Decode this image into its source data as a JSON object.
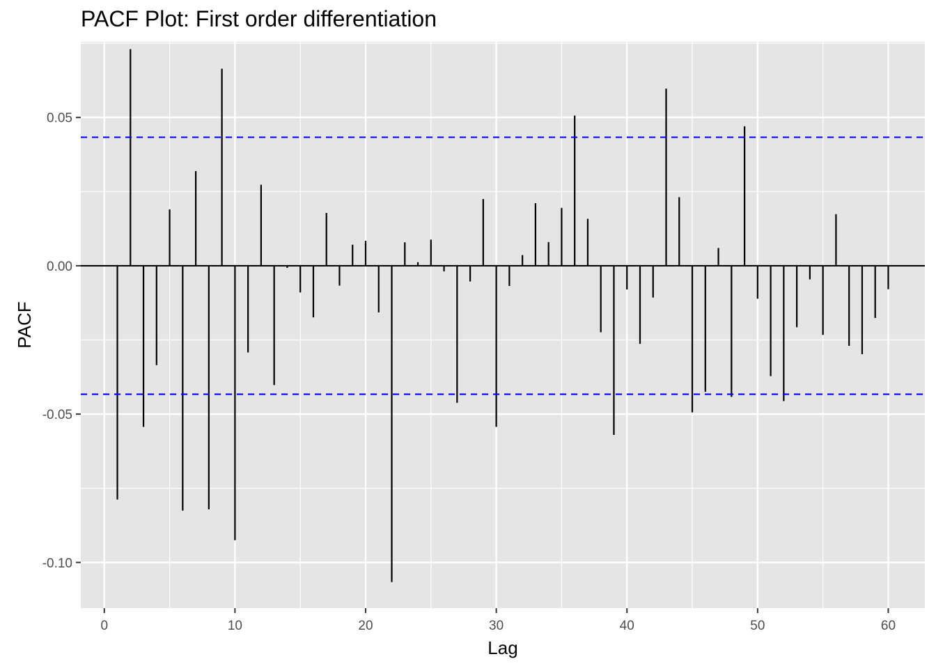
{
  "chart_data": {
    "type": "bar",
    "title": "PACF Plot: First order differentiation",
    "xlabel": "Lag",
    "ylabel": "PACF",
    "xlim": [
      -1.8,
      62.8
    ],
    "ylim": [
      -0.1154,
      0.0755
    ],
    "x_ticks": [
      0,
      10,
      20,
      30,
      40,
      50,
      60
    ],
    "x_tick_labels": [
      "0",
      "10",
      "20",
      "30",
      "40",
      "50",
      "60"
    ],
    "y_ticks": [
      -0.1,
      -0.05,
      0.0,
      0.05
    ],
    "y_tick_labels": [
      "-0.10",
      "-0.05",
      "0.00",
      "0.05"
    ],
    "confidence_bounds": [
      0.0433,
      -0.0433
    ],
    "grid": true,
    "legend": "none",
    "series": [
      {
        "x": [
          1,
          2,
          3,
          4,
          5,
          6,
          7,
          8,
          9,
          10,
          11,
          12,
          13,
          14,
          15,
          16,
          17,
          18,
          19,
          20,
          21,
          22,
          23,
          24,
          25,
          26,
          27,
          28,
          29,
          30,
          31,
          32,
          33,
          34,
          35,
          36,
          37,
          38,
          39,
          40,
          41,
          42,
          43,
          44,
          45,
          46,
          47,
          48,
          49,
          50,
          51,
          52,
          53,
          54,
          55,
          56,
          57,
          58,
          59,
          60
        ],
        "values": [
          -0.0788,
          0.073,
          -0.0543,
          -0.0335,
          0.019,
          -0.0825,
          0.0319,
          -0.0821,
          0.0664,
          -0.0925,
          -0.0292,
          0.0273,
          -0.0402,
          -0.0007,
          -0.009,
          -0.0174,
          0.0178,
          -0.0067,
          0.0071,
          0.0084,
          -0.0157,
          -0.1066,
          0.0079,
          0.0012,
          0.0088,
          -0.0019,
          -0.0462,
          -0.0053,
          0.0225,
          -0.0543,
          -0.0068,
          0.0036,
          0.0211,
          0.008,
          0.0195,
          0.0506,
          0.0158,
          -0.0224,
          -0.057,
          -0.008,
          -0.0263,
          -0.0107,
          0.0597,
          0.0231,
          -0.0494,
          -0.0425,
          0.006,
          -0.0442,
          0.047,
          -0.0111,
          -0.0372,
          -0.0456,
          -0.0207,
          -0.0046,
          -0.0233,
          0.0174,
          -0.027,
          -0.0298,
          -0.0176,
          -0.0079
        ]
      }
    ]
  },
  "colors": {
    "panel_background": "#e5e5e5",
    "grid": "#ffffff",
    "bars": "#000000",
    "zero_line": "#000000",
    "confidence_line": "#0000ff",
    "tick_text": "#4d4d4d",
    "tick_marks": "#333333"
  }
}
